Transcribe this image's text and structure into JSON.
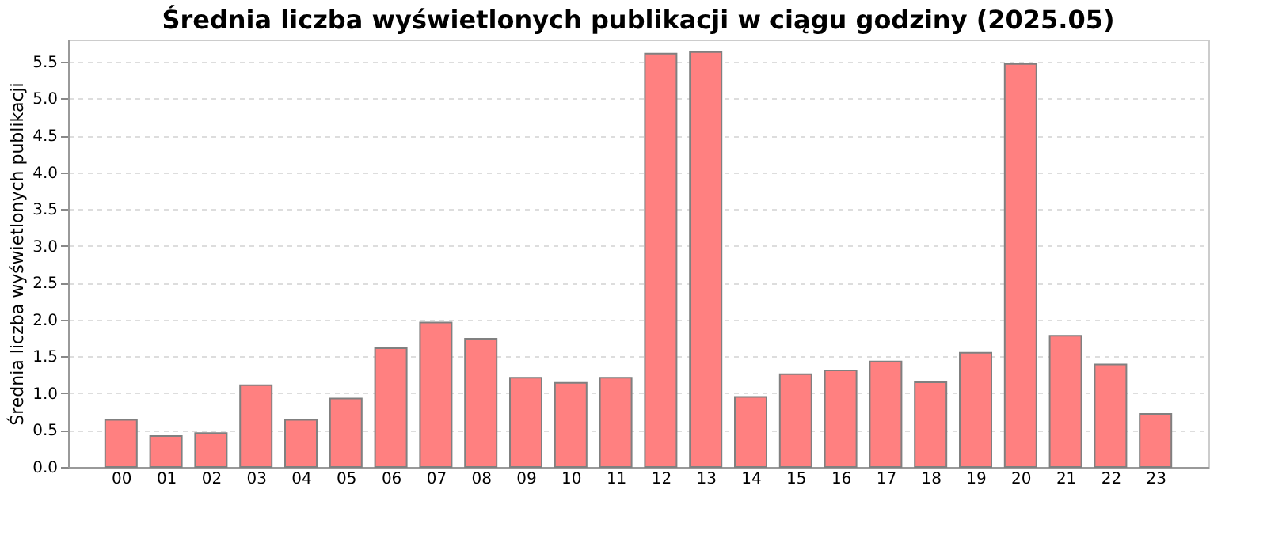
{
  "chart_data": {
    "type": "bar",
    "title": "Średnia liczba wyświetlonych publikacji w ciągu godziny (2025.05)",
    "ylabel": "Średnia liczba wyświetlonych publikacji",
    "categories": [
      "00",
      "01",
      "02",
      "03",
      "04",
      "05",
      "06",
      "07",
      "08",
      "09",
      "10",
      "11",
      "12",
      "13",
      "14",
      "15",
      "16",
      "17",
      "18",
      "19",
      "20",
      "21",
      "22",
      "23"
    ],
    "values": [
      0.64,
      0.42,
      0.46,
      1.11,
      0.64,
      0.93,
      1.61,
      1.96,
      1.74,
      1.21,
      1.14,
      1.21,
      5.61,
      5.63,
      0.95,
      1.26,
      1.31,
      1.43,
      1.15,
      1.55,
      5.47,
      1.78,
      1.39,
      0.72
    ],
    "color": "#ff8080",
    "ylim": [
      0,
      5.8
    ],
    "yticks": [
      {
        "value": 0,
        "label": "0.0"
      },
      0.5,
      {
        "value": 1,
        "label": "1.0"
      },
      1.5,
      {
        "value": 2,
        "label": "2.0"
      },
      2.5,
      {
        "value": 3,
        "label": "3.0"
      },
      3.5,
      {
        "value": 4,
        "label": "4.0"
      },
      4.5,
      {
        "value": 5,
        "label": "5.0"
      },
      5.5
    ],
    "grid": "y"
  }
}
